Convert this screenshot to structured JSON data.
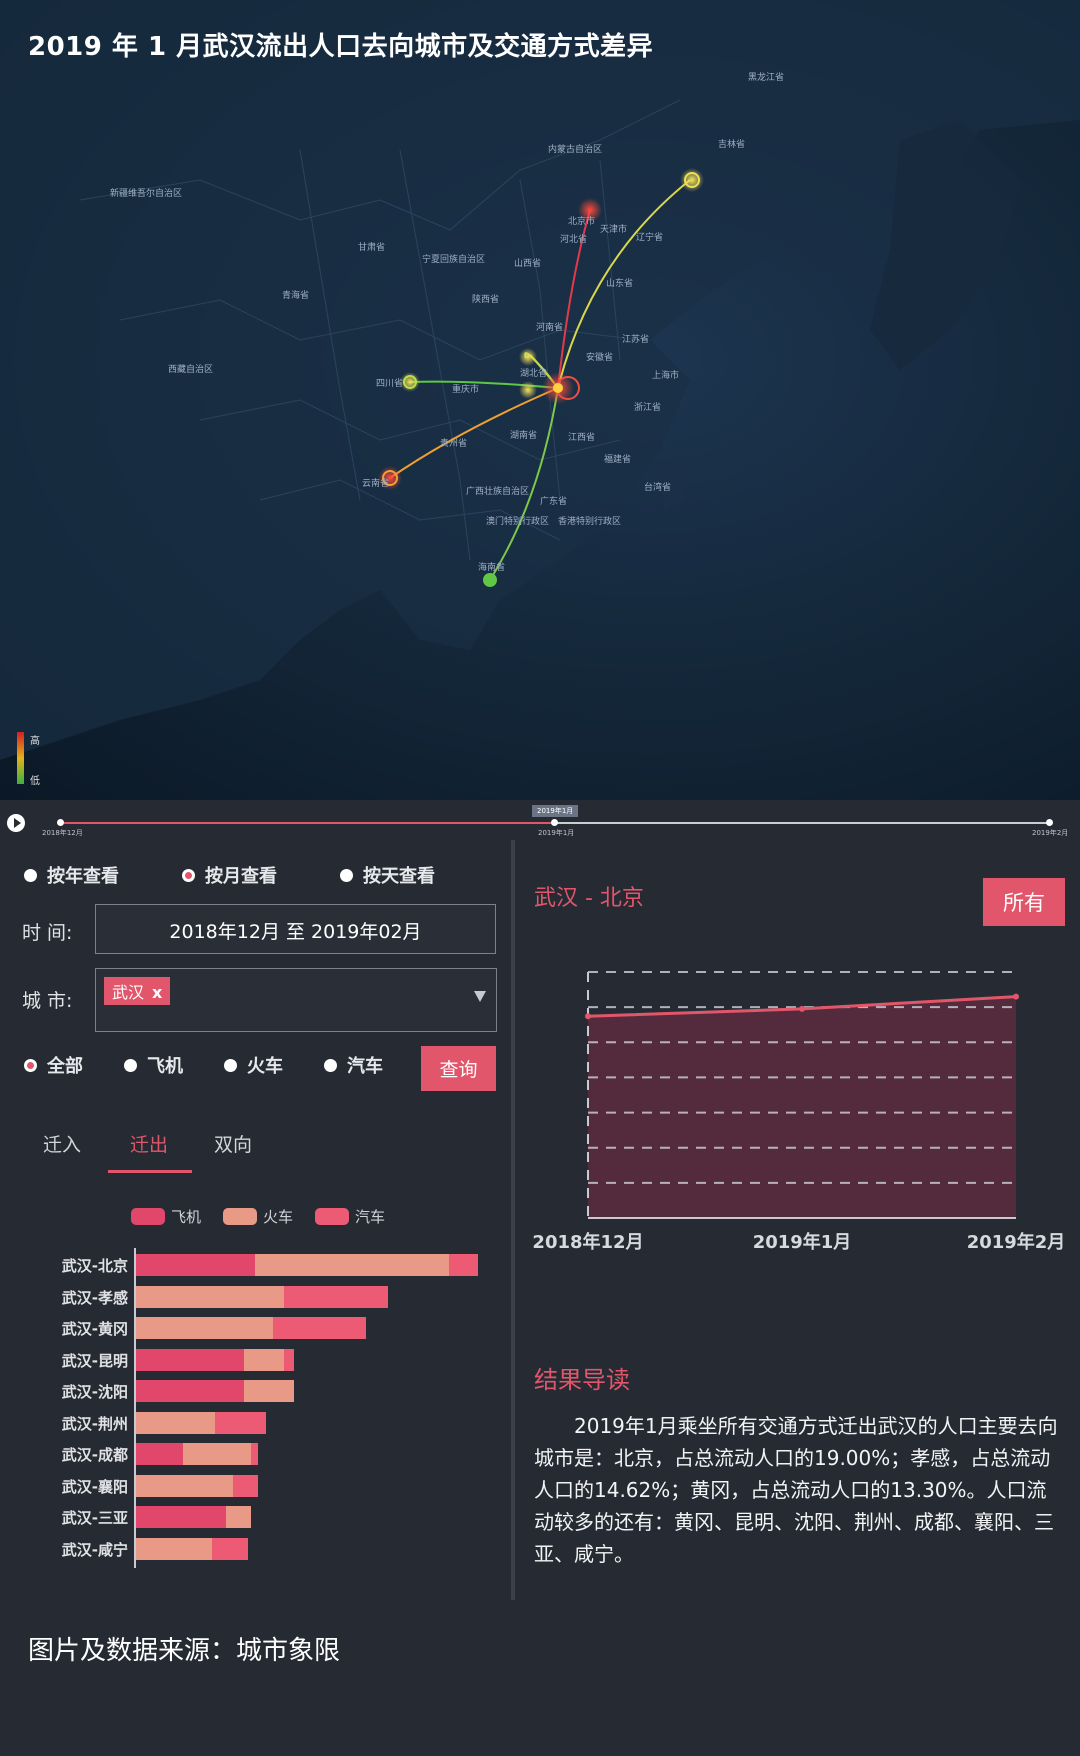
{
  "map": {
    "title": "2019 年 1 月武汉流出人口去向城市及交通方式差异",
    "legend_high": "高",
    "legend_low": "低",
    "labels": [
      "黑龙江省",
      "吉林省",
      "内蒙古自治区",
      "北京市",
      "天津市",
      "河北省",
      "甘肃省",
      "宁夏回族自治区",
      "山西省",
      "陕西省",
      "青海省",
      "河南省",
      "山东省",
      "辽宁省",
      "江苏省",
      "安徽省",
      "上海市",
      "湖北省",
      "重庆市",
      "四川省",
      "浙江省",
      "江西省",
      "湖南省",
      "福建省",
      "贵州省",
      "云南省",
      "台湾省",
      "广东省",
      "广西壮族自治区",
      "澳门特别行政区",
      "香港特别行政区",
      "海南省",
      "新疆维吾尔自治区",
      "西藏自治区"
    ]
  },
  "timeline": {
    "start": "2018年12月",
    "current": "2019年1月",
    "end": "2019年2月",
    "mid": "2019年1月"
  },
  "filters": {
    "view_options": [
      "按年查看",
      "按月查看",
      "按天查看"
    ],
    "view_selected": "按月查看",
    "time_label": "时 间:",
    "time_value": "2018年12月 至 2019年02月",
    "city_label": "城 市:",
    "city_tag": "武汉",
    "city_tag_close": "x",
    "mode_options": [
      "全部",
      "飞机",
      "火车",
      "汽车"
    ],
    "mode_selected": "全部",
    "query_label": "查询"
  },
  "tabs": {
    "items": [
      "迁入",
      "迁出",
      "双向"
    ],
    "active": "迁出"
  },
  "colors": {
    "plane": "#e0476a",
    "train": "#e89a86",
    "car": "#ed5a73",
    "accent": "#e2566b"
  },
  "chart_data": [
    {
      "type": "bar",
      "stacked": true,
      "orientation": "horizontal",
      "legend": [
        "飞机",
        "火车",
        "汽车"
      ],
      "categories": [
        "武汉-北京",
        "武汉-孝感",
        "武汉-黄冈",
        "武汉-昆明",
        "武汉-沈阳",
        "武汉-荆州",
        "武汉-成都",
        "武汉-襄阳",
        "武汉-三亚",
        "武汉-咸宁"
      ],
      "series": [
        {
          "name": "飞机",
          "segments": [
            [
              0,
              33
            ],
            [
              0,
              0
            ],
            [
              0,
              0
            ],
            [
              0,
              30
            ],
            [
              0,
              30
            ],
            [
              0,
              0
            ],
            [
              0,
              13
            ],
            [
              0,
              0
            ],
            [
              0,
              25
            ],
            [
              0,
              0
            ]
          ]
        },
        {
          "name": "火车",
          "segments": [
            [
              33,
              87
            ],
            [
              0,
              41
            ],
            [
              0,
              38
            ],
            [
              30,
              41
            ],
            [
              30,
              44
            ],
            [
              0,
              22
            ],
            [
              13,
              32
            ],
            [
              0,
              27
            ],
            [
              25,
              32
            ],
            [
              0,
              21
            ]
          ]
        },
        {
          "name": "汽车",
          "segments": [
            [
              87,
              95
            ],
            [
              41,
              70
            ],
            [
              38,
              64
            ],
            [
              41,
              44
            ],
            [
              44,
              44
            ],
            [
              22,
              36
            ],
            [
              32,
              34
            ],
            [
              27,
              34
            ],
            [
              32,
              32
            ],
            [
              21,
              31
            ]
          ]
        }
      ],
      "series_order_note": ""
    },
    {
      "type": "area",
      "title": "武汉 - 北京",
      "x": [
        "2018年12月",
        "2019年1月",
        "2019年2月"
      ],
      "values": [
        8.2,
        8.5,
        9.0
      ],
      "ylim": [
        0,
        10
      ]
    }
  ],
  "route": {
    "title": "武汉 - 北京",
    "all_label": "所有"
  },
  "result": {
    "title": "结果导读",
    "text": "2019年1月乘坐所有交通方式迁出武汉的人口主要去向城市是：北京，占总流动人口的19.00%；孝感，占总流动人口的14.62%；黄冈，占总流动人口的13.30%。人口流动较多的还有：黄冈、昆明、沈阳、荆州、成都、襄阳、三亚、咸宁。"
  },
  "source": "图片及数据来源：城市象限"
}
